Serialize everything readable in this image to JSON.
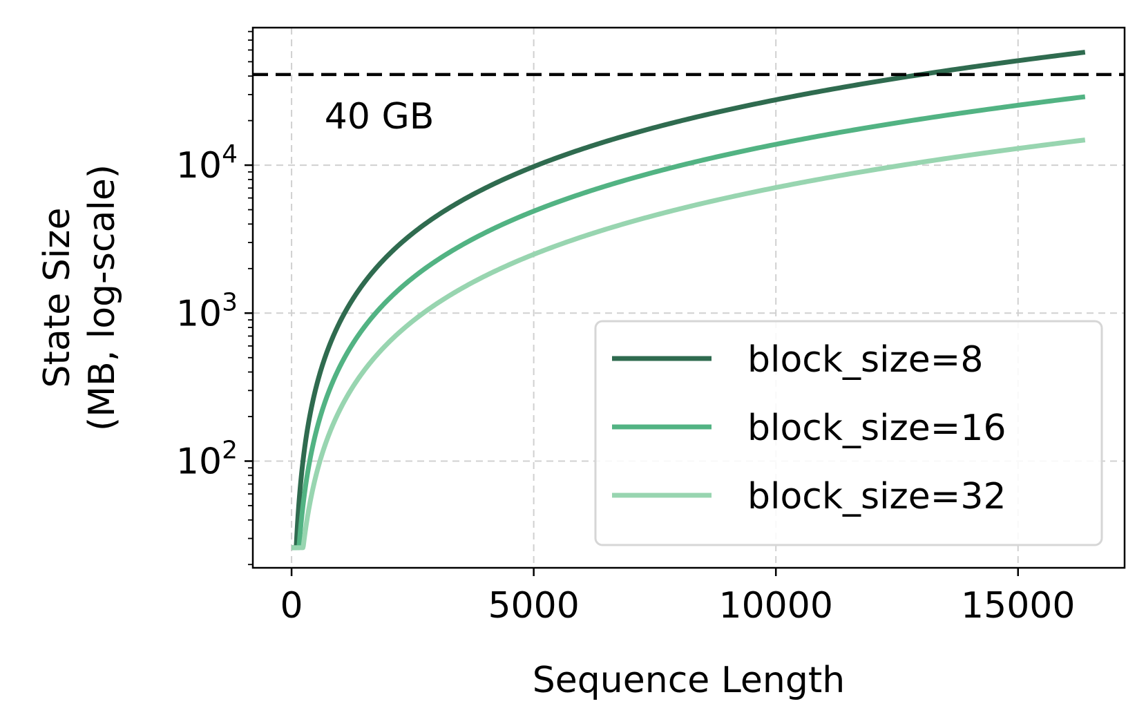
{
  "chart_data": {
    "type": "line",
    "xlabel": "Sequence Length",
    "ylabel_line1": "State Size",
    "ylabel_line2": "(MB, log-scale)",
    "xlim": [
      -800,
      17200
    ],
    "ylim": [
      19,
      85000
    ],
    "yscale": "log",
    "grid": true,
    "legend_position": "lower-right",
    "xticks": [
      0,
      5000,
      10000,
      15000
    ],
    "xtick_labels": [
      "0",
      "5000",
      "10000",
      "15000"
    ],
    "yticks": [
      100,
      1000,
      10000
    ],
    "ytick_base": "10",
    "ytick_exponents": [
      "2",
      "3",
      "4"
    ],
    "x_range": [
      0,
      16384
    ],
    "reference_line": {
      "value": 40960,
      "label": "40 GB",
      "color": "#000000"
    },
    "series": [
      {
        "name": "block_size=8",
        "color": "#2f6b4f",
        "y_at_x_max": 58000,
        "y_at_x_min": 26
      },
      {
        "name": "block_size=16",
        "color": "#52b383",
        "y_at_x_max": 29000,
        "y_at_x_min": 26
      },
      {
        "name": "block_size=32",
        "color": "#98d5b0",
        "y_at_x_max": 14800,
        "y_at_x_min": 26
      }
    ]
  }
}
